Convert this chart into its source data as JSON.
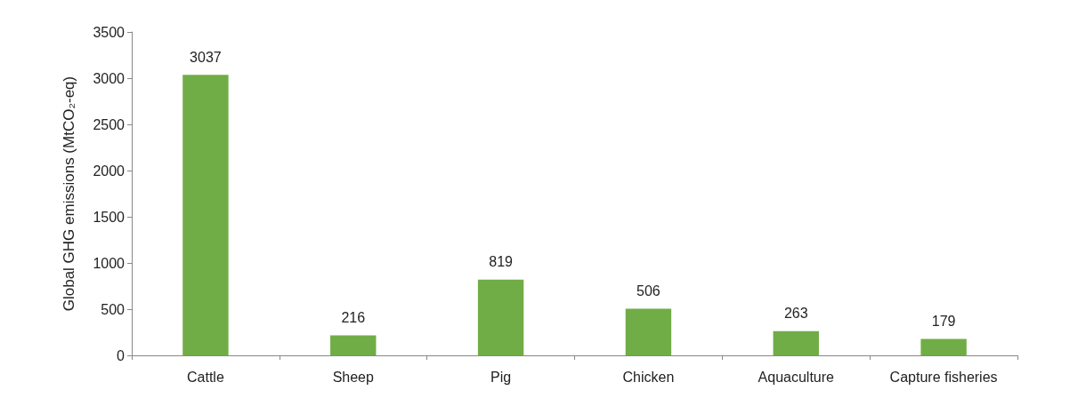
{
  "chart_data": {
    "type": "bar",
    "categories": [
      "Cattle",
      "Sheep",
      "Pig",
      "Chicken",
      "Aquaculture",
      "Capture fisheries"
    ],
    "values": [
      3037,
      216,
      819,
      506,
      263,
      179
    ],
    "color": "#70ad47",
    "ylabel": "Global GHG emissions (MtCO₂-eq)",
    "ylim": [
      0,
      3500
    ],
    "yticks": [
      0,
      500,
      1000,
      1500,
      2000,
      2500,
      3000,
      3500
    ],
    "grid": false,
    "data_labels": true
  }
}
